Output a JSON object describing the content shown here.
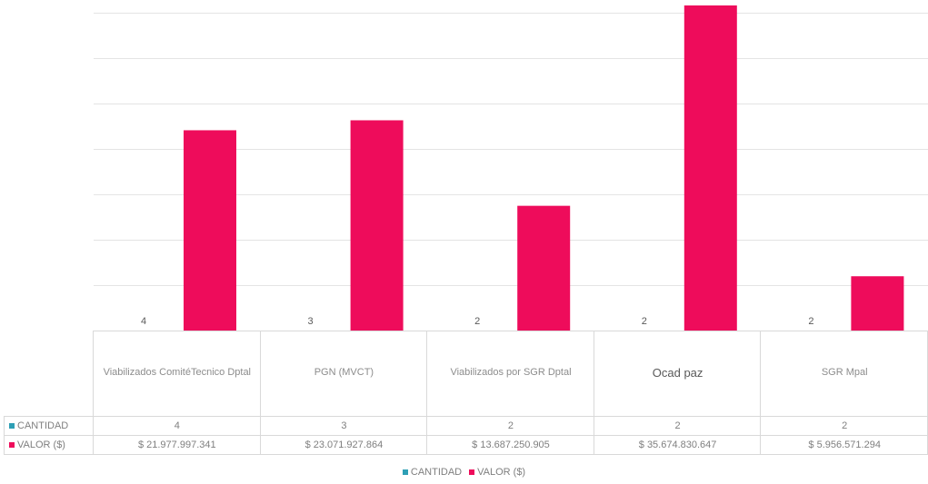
{
  "chart_data": {
    "type": "bar",
    "categories": [
      [
        "Viabilizados Comité",
        "Tecnico Dptal"
      ],
      [
        "PGN (MVCT)"
      ],
      [
        "Viabilizados por SGR Dptal"
      ],
      [
        "Ocad paz"
      ],
      [
        "SGR Mpal"
      ]
    ],
    "series": [
      {
        "name": "CANTIDAD",
        "color": "#2e9fb5",
        "values": [
          4,
          3,
          2,
          2,
          2
        ],
        "labels": [
          "4",
          "3",
          "2",
          "2",
          "2"
        ]
      },
      {
        "name": "VALOR ($)",
        "color": "#ee0c5b",
        "values": [
          21977997341,
          23071927864,
          13687250905,
          35674830647,
          5956571294
        ],
        "labels": [
          "$ 21.977.997.341",
          "$ 23.071.927.864",
          "$ 13.687.250.905",
          "$ 35.674.830.647",
          "$ 5.956.571.294"
        ]
      }
    ],
    "ylim": [
      0,
      35674830647
    ],
    "gridlines": 7,
    "grid": true,
    "legend": "bottom",
    "data_table": true
  }
}
